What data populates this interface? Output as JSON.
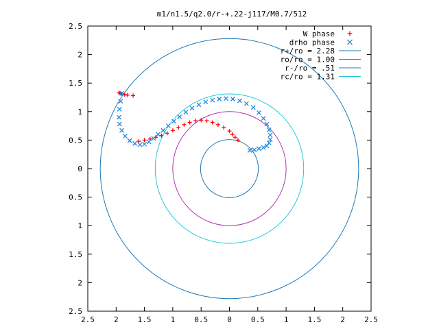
{
  "chart_data": {
    "type": "scatter",
    "title": "m1/n1.5/q2.0/r-+.22-j117/M0.7/512",
    "xlabel": "",
    "ylabel": "",
    "xlim": [
      2.5,
      -2.5
    ],
    "ylim": [
      -2.5,
      2.5
    ],
    "x_ticks": [
      2.5,
      2,
      1.5,
      1,
      0.5,
      0,
      0.5,
      1,
      1.5,
      2,
      2.5
    ],
    "x_tick_values": [
      2.5,
      2,
      1.5,
      1,
      0.5,
      0,
      -0.5,
      -1,
      -1.5,
      -2,
      -2.5
    ],
    "y_ticks": [
      2.5,
      2,
      1.5,
      1,
      0.5,
      0,
      0.5,
      1,
      1.5,
      2,
      2.5
    ],
    "y_tick_values": [
      2.5,
      2,
      1.5,
      1,
      0.5,
      0,
      -0.5,
      -1,
      -1.5,
      -2,
      -2.5
    ],
    "grid": false,
    "legend_position": "top-right",
    "series": [
      {
        "name": "W phase",
        "kind": "points",
        "marker": "+",
        "color": "#ff0000",
        "x": [
          1.95,
          1.93,
          1.9,
          1.85,
          1.8,
          1.7,
          1.6,
          1.5,
          1.4,
          1.3,
          1.2,
          1.1,
          1.0,
          0.9,
          0.8,
          0.7,
          0.6,
          0.5,
          0.4,
          0.3,
          0.2,
          0.1,
          0.0,
          -0.05,
          -0.1,
          -0.15
        ],
        "y": [
          1.33,
          1.32,
          1.31,
          1.3,
          1.29,
          1.28,
          0.48,
          0.5,
          0.52,
          0.55,
          0.58,
          0.62,
          0.67,
          0.72,
          0.77,
          0.81,
          0.84,
          0.85,
          0.84,
          0.81,
          0.77,
          0.72,
          0.66,
          0.6,
          0.55,
          0.5
        ]
      },
      {
        "name": "drho phase",
        "kind": "points",
        "marker": "x",
        "color": "#1e88e5",
        "x": [
          1.9,
          1.92,
          1.94,
          1.95,
          1.94,
          1.9,
          1.84,
          1.76,
          1.67,
          1.58,
          1.5,
          1.42,
          1.34,
          1.26,
          1.17,
          1.08,
          0.98,
          0.88,
          0.77,
          0.66,
          0.54,
          0.42,
          0.3,
          0.18,
          0.06,
          -0.06,
          -0.18,
          -0.3,
          -0.42,
          -0.52,
          -0.6,
          -0.66,
          -0.7,
          -0.72,
          -0.72,
          -0.7,
          -0.66,
          -0.6,
          -0.52,
          -0.44,
          -0.36
        ],
        "y": [
          1.32,
          1.18,
          1.04,
          0.9,
          0.78,
          0.67,
          0.57,
          0.49,
          0.44,
          0.42,
          0.43,
          0.47,
          0.53,
          0.6,
          0.67,
          0.75,
          0.83,
          0.91,
          0.99,
          1.06,
          1.12,
          1.17,
          1.2,
          1.22,
          1.23,
          1.22,
          1.19,
          1.14,
          1.07,
          0.98,
          0.88,
          0.78,
          0.68,
          0.59,
          0.51,
          0.45,
          0.4,
          0.37,
          0.35,
          0.33,
          0.32
        ]
      },
      {
        "name": "r+/ro = 2.28",
        "kind": "circle",
        "radius": 2.28,
        "color": "#1f78b4"
      },
      {
        "name": "ro/ro = 1.00",
        "kind": "circle",
        "radius": 1.0,
        "color": "#b030b0"
      },
      {
        "name": "r-/ro = .51",
        "kind": "circle",
        "radius": 0.51,
        "color": "#1f78b4"
      },
      {
        "name": "rc/ro = 1.31",
        "kind": "circle",
        "radius": 1.31,
        "color": "#20c8d8"
      }
    ]
  }
}
